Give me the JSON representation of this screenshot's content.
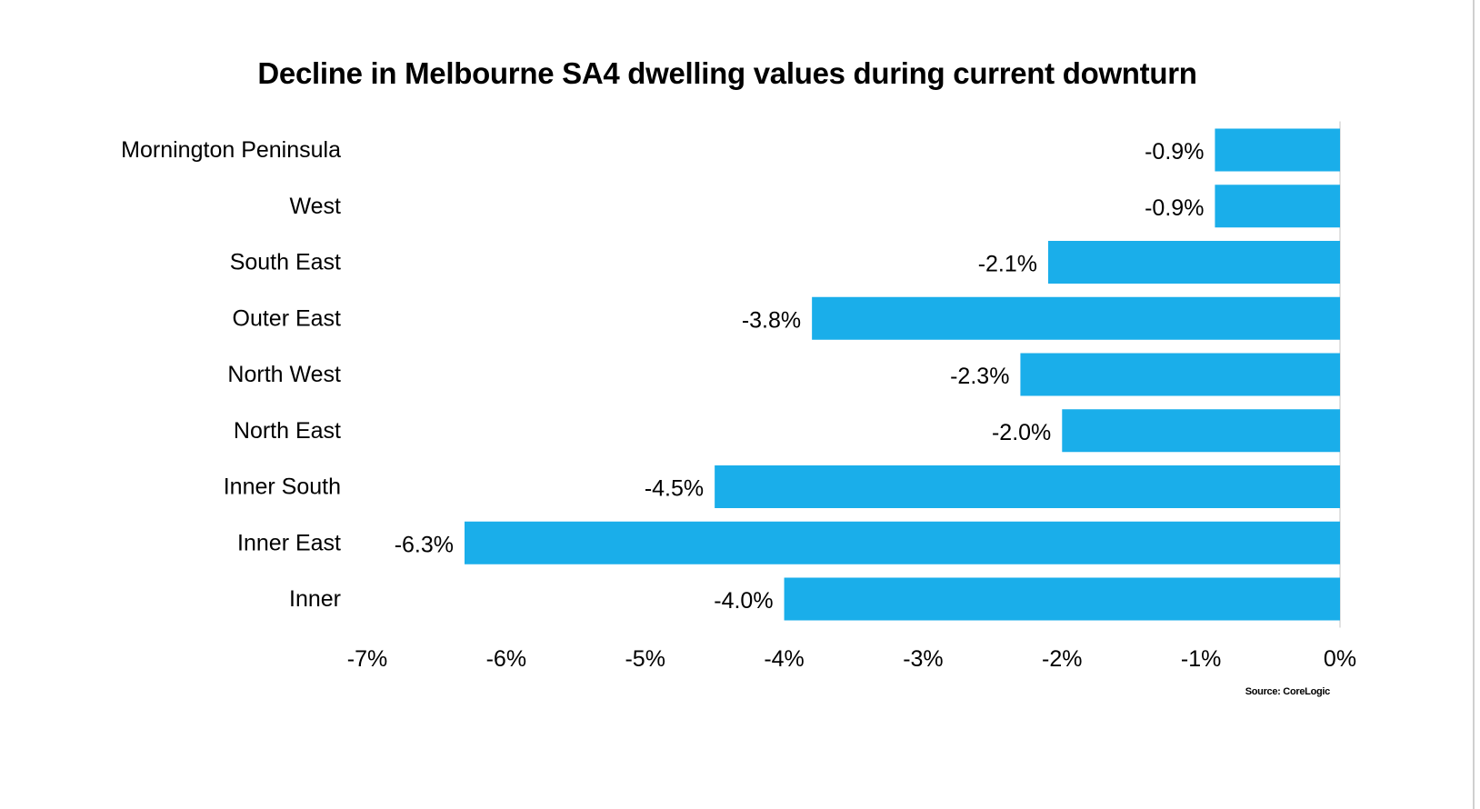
{
  "chart_data": {
    "type": "bar",
    "orientation": "horizontal",
    "title": "Decline in Melbourne SA4 dwelling values during current downturn",
    "categories": [
      "Mornington Peninsula",
      "West",
      "South East",
      "Outer East",
      "North West",
      "North East",
      "Inner South",
      "Inner East",
      "Inner"
    ],
    "values": [
      -0.9,
      -0.9,
      -2.1,
      -3.8,
      -2.3,
      -2.0,
      -4.5,
      -6.3,
      -4.0
    ],
    "data_labels": [
      "-0.9%",
      "-0.9%",
      "-2.1%",
      "-3.8%",
      "-2.3%",
      "-2.0%",
      "-4.5%",
      "-6.3%",
      "-4.0%"
    ],
    "xlim": [
      -7,
      0
    ],
    "x_ticks": [
      "-7%",
      "-6%",
      "-5%",
      "-4%",
      "-3%",
      "-2%",
      "-1%",
      "0%"
    ],
    "xlabel": "",
    "ylabel": "",
    "grid": false,
    "legend": "none",
    "bar_color": "#1AAEEA",
    "source": "Source: CoreLogic"
  }
}
